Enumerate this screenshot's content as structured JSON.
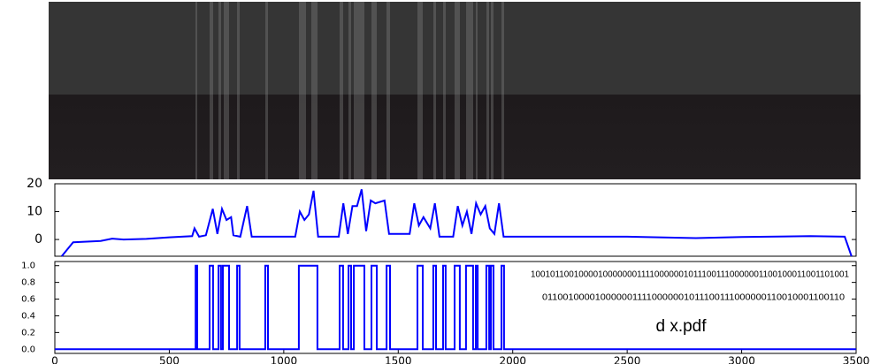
{
  "chart_data": [
    {
      "type": "line",
      "color": "#0000ff",
      "xlim": [
        0,
        3500
      ],
      "ylim": [
        -6,
        20
      ],
      "yticks": [
        0,
        10,
        20
      ],
      "x": [
        30,
        80,
        200,
        250,
        300,
        400,
        500,
        600,
        610,
        630,
        660,
        690,
        710,
        730,
        750,
        770,
        780,
        810,
        840,
        860,
        1050,
        1070,
        1090,
        1110,
        1130,
        1150,
        1240,
        1260,
        1280,
        1300,
        1320,
        1340,
        1360,
        1380,
        1400,
        1440,
        1460,
        1550,
        1570,
        1590,
        1610,
        1640,
        1660,
        1680,
        1740,
        1760,
        1780,
        1800,
        1820,
        1840,
        1860,
        1880,
        1900,
        1920,
        1940,
        1960,
        2500,
        2800,
        3000,
        3300,
        3450,
        3480
      ],
      "values": [
        -6,
        -1,
        -0.5,
        0.3,
        0,
        0.2,
        0.8,
        1.2,
        4,
        1,
        1.5,
        11,
        2,
        11,
        7,
        8,
        1.5,
        1,
        12,
        1,
        1,
        10,
        7,
        9,
        17.5,
        1,
        1,
        13,
        2,
        12,
        12,
        18,
        3,
        14,
        13,
        14,
        2,
        2,
        13,
        5,
        8,
        4,
        13,
        1,
        1,
        12,
        5,
        10,
        2,
        13,
        9,
        12,
        4,
        2,
        13,
        1,
        1,
        0.5,
        0.9,
        1.2,
        1,
        -6
      ]
    },
    {
      "type": "line",
      "color": "#0000ff",
      "xlim": [
        0,
        3500
      ],
      "ylim": [
        -0.05,
        1.05
      ],
      "xticks": [
        0,
        500,
        1000,
        1500,
        2000,
        2500,
        3000,
        3500
      ],
      "yticks": [
        {
          "value": 0,
          "label": "0.0"
        },
        {
          "value": 0.2,
          "label": "0.2"
        },
        {
          "value": 0.4,
          "label": "0.4"
        },
        {
          "value": 0.6,
          "label": "0.6"
        },
        {
          "value": 0.8,
          "label": "0.8"
        },
        {
          "value": 1,
          "label": "1.0"
        }
      ],
      "x": [
        0,
        615,
        615,
        622,
        622,
        676,
        676,
        691,
        691,
        715,
        715,
        726,
        726,
        734,
        734,
        761,
        761,
        796,
        796,
        807,
        807,
        919,
        919,
        931,
        931,
        1066,
        1066,
        1147,
        1147,
        1244,
        1244,
        1259,
        1259,
        1283,
        1283,
        1294,
        1294,
        1306,
        1306,
        1352,
        1352,
        1383,
        1383,
        1406,
        1406,
        1449,
        1449,
        1464,
        1464,
        1584,
        1584,
        1607,
        1607,
        1653,
        1653,
        1665,
        1665,
        1696,
        1696,
        1707,
        1707,
        1746,
        1746,
        1769,
        1769,
        1796,
        1796,
        1827,
        1827,
        1839,
        1839,
        1847,
        1847,
        1885,
        1885,
        1897,
        1897,
        1905,
        1905,
        1916,
        1916,
        1951,
        1951,
        1962,
        1962,
        3500
      ],
      "values": [
        0,
        0,
        1,
        1,
        0,
        0,
        1,
        1,
        0,
        0,
        1,
        1,
        0,
        0,
        1,
        1,
        0,
        0,
        1,
        1,
        0,
        0,
        1,
        1,
        0,
        0,
        1,
        1,
        0,
        0,
        1,
        1,
        0,
        0,
        1,
        1,
        0,
        0,
        1,
        1,
        0,
        0,
        1,
        1,
        0,
        0,
        1,
        1,
        0,
        0,
        1,
        1,
        0,
        0,
        1,
        1,
        0,
        0,
        1,
        1,
        0,
        0,
        1,
        1,
        0,
        0,
        1,
        1,
        0,
        0,
        1,
        1,
        0,
        0,
        1,
        1,
        0,
        0,
        1,
        1,
        0,
        0,
        1,
        1,
        0,
        0
      ],
      "annotations": [
        "1001011001000010000000111100000010111001110000001100100011001101001",
        "0110010000100000011110000001011100111000000110010001100110",
        "d x.pdf"
      ]
    }
  ]
}
